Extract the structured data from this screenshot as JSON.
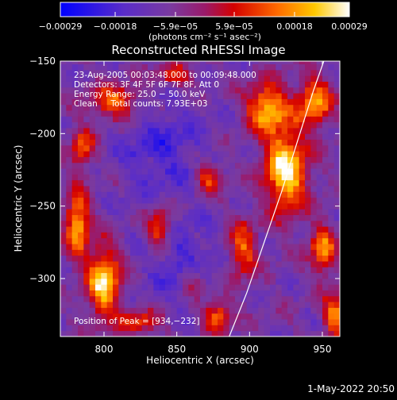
{
  "chart_data": {
    "type": "heatmap",
    "title": "Reconstructed RHESSI Image",
    "xlabel": "Heliocentric X (arcsec)",
    "ylabel": "Heliocentric Y (arcsec)",
    "xlim": [
      770,
      962
    ],
    "ylim": [
      -340,
      -150
    ],
    "x_ticks": [
      800,
      850,
      900,
      950
    ],
    "y_ticks": [
      -150,
      -200,
      -250,
      -300
    ],
    "y_tick_labels": [
      "−150",
      "−200",
      "−250",
      "−300"
    ],
    "colorbar": {
      "range": [
        -0.00029,
        0.00029
      ],
      "ticks": [
        -0.00029,
        -0.00018,
        -5.9e-05,
        5.9e-05,
        0.00018,
        0.00029
      ],
      "tick_labels": [
        "−0.00029",
        "−0.00018",
        "−5.9e−05",
        "5.9e−05",
        "0.00018",
        "0.00029"
      ],
      "units": "(photons cm⁻² s⁻¹ asec⁻²)"
    },
    "annotations": [
      "23‑Aug‑2005 00:03:48.000 to 00:09:48.000",
      "Detectors: 3F 4F 5F 6F 7F 8F, Att 0",
      "Energy Range: 25.0 − 50.0 keV",
      "Clean     Total counts: 7.93E+03"
    ],
    "peak_label": "Position of Peak = [934,−232]",
    "limb_curve": [
      [
        886,
        -340
      ],
      [
        898,
        -310
      ],
      [
        910,
        -275
      ],
      [
        922,
        -240
      ],
      [
        933,
        -205
      ],
      [
        944,
        -170
      ],
      [
        951,
        -150
      ]
    ],
    "sources": [
      {
        "x": 925,
        "y": -225,
        "amp": 1.0,
        "sx": 10,
        "sy": 20
      },
      {
        "x": 912,
        "y": -182,
        "amp": 0.8,
        "sx": 10,
        "sy": 12
      },
      {
        "x": 945,
        "y": -178,
        "amp": 0.75,
        "sx": 8,
        "sy": 12
      },
      {
        "x": 800,
        "y": -302,
        "amp": 0.95,
        "sx": 8,
        "sy": 16
      },
      {
        "x": 782,
        "y": -262,
        "amp": 0.8,
        "sx": 6,
        "sy": 16
      },
      {
        "x": 838,
        "y": -265,
        "amp": 0.65,
        "sx": 6,
        "sy": 10
      },
      {
        "x": 895,
        "y": -280,
        "amp": 0.6,
        "sx": 7,
        "sy": 14
      },
      {
        "x": 808,
        "y": -178,
        "amp": 0.65,
        "sx": 12,
        "sy": 8
      },
      {
        "x": 872,
        "y": -230,
        "amp": 0.55,
        "sx": 7,
        "sy": 8
      },
      {
        "x": 950,
        "y": -280,
        "amp": 0.7,
        "sx": 6,
        "sy": 12
      },
      {
        "x": 958,
        "y": -325,
        "amp": 0.7,
        "sx": 5,
        "sy": 10
      },
      {
        "x": 848,
        "y": -160,
        "amp": 0.5,
        "sx": 10,
        "sy": 6
      },
      {
        "x": 878,
        "y": -325,
        "amp": 0.65,
        "sx": 7,
        "sy": 8
      },
      {
        "x": 825,
        "y": -330,
        "amp": 0.5,
        "sx": 10,
        "sy": 6
      },
      {
        "x": 785,
        "y": -210,
        "amp": 0.55,
        "sx": 6,
        "sy": 10
      },
      {
        "x": 862,
        "y": -300,
        "amp": 0.45,
        "sx": 6,
        "sy": 8
      }
    ],
    "dark_regions": [
      {
        "x": 840,
        "y": -210,
        "sx": 22,
        "sy": 25
      },
      {
        "x": 855,
        "y": -290,
        "sx": 18,
        "sy": 20
      }
    ],
    "footer_timestamp": "1-May-2022 20:50"
  }
}
